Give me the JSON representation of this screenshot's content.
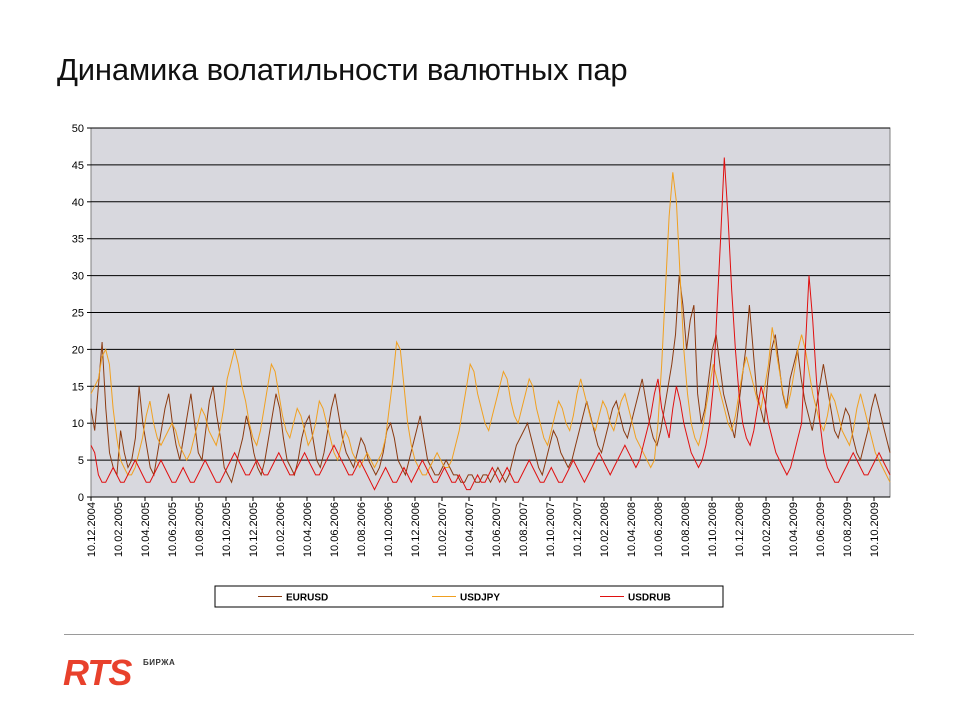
{
  "slide": {
    "title": "Динамика волатильности валютных пар"
  },
  "logo": {
    "text": "RTS",
    "subtitle": "БИРЖА",
    "color": "#e8412c"
  },
  "chart_data": {
    "type": "line",
    "title": "",
    "xlabel": "",
    "ylabel": "",
    "ylim": [
      0,
      50
    ],
    "yticks": [
      0,
      5,
      10,
      15,
      20,
      25,
      30,
      35,
      40,
      45,
      50
    ],
    "grid": true,
    "legend_position": "bottom",
    "plot_background": "#d8d8de",
    "x_tick_labels": [
      "10.12.2004",
      "10.02.2005",
      "10.04.2005",
      "10.06.2005",
      "10.08.2005",
      "10.10.2005",
      "10.12.2005",
      "10.02.2006",
      "10.04.2006",
      "10.06.2006",
      "10.08.2006",
      "10.10.2006",
      "10.12.2006",
      "10.02.2007",
      "10.04.2007",
      "10.06.2007",
      "10.08.2007",
      "10.10.2007",
      "10.12.2007",
      "10.02.2008",
      "10.04.2008",
      "10.06.2008",
      "10.08.2008",
      "10.10.2008",
      "10.12.2008",
      "10.02.2009",
      "10.04.2009",
      "10.06.2009",
      "10.08.2009",
      "10.10.2009"
    ],
    "series": [
      {
        "name": "EURUSD",
        "color": "#8b3a10",
        "values": [
          12,
          9,
          15,
          21,
          12,
          6,
          4,
          3,
          9,
          6,
          4,
          5,
          8,
          15,
          10,
          7,
          4,
          3,
          6,
          9,
          12,
          14,
          10,
          7,
          5,
          8,
          11,
          14,
          10,
          6,
          5,
          9,
          13,
          15,
          11,
          8,
          4,
          3,
          2,
          4,
          6,
          8,
          11,
          9,
          6,
          4,
          3,
          5,
          8,
          11,
          14,
          12,
          8,
          5,
          4,
          3,
          5,
          8,
          10,
          11,
          8,
          5,
          4,
          6,
          9,
          12,
          14,
          11,
          8,
          6,
          5,
          4,
          6,
          8,
          7,
          5,
          4,
          3,
          4,
          6,
          9,
          10,
          8,
          5,
          4,
          3,
          5,
          7,
          9,
          11,
          8,
          5,
          4,
          3,
          3,
          4,
          5,
          4,
          3,
          3,
          2,
          2,
          3,
          3,
          2,
          2,
          3,
          3,
          2,
          3,
          4,
          3,
          2,
          3,
          5,
          7,
          8,
          9,
          10,
          8,
          6,
          4,
          3,
          5,
          7,
          9,
          8,
          6,
          5,
          4,
          5,
          7,
          9,
          11,
          13,
          11,
          9,
          7,
          6,
          8,
          10,
          12,
          13,
          11,
          9,
          8,
          10,
          12,
          14,
          16,
          13,
          10,
          8,
          7,
          9,
          12,
          15,
          18,
          22,
          30,
          26,
          20,
          24,
          26,
          14,
          10,
          12,
          16,
          20,
          22,
          18,
          14,
          12,
          10,
          8,
          12,
          16,
          20,
          26,
          20,
          14,
          12,
          10,
          16,
          20,
          22,
          18,
          14,
          12,
          16,
          18,
          20,
          16,
          13,
          11,
          9,
          12,
          15,
          18,
          15,
          12,
          9,
          8,
          10,
          12,
          11,
          8,
          6,
          5,
          7,
          9,
          12,
          14,
          12,
          10,
          8,
          6
        ]
      },
      {
        "name": "USDJPY",
        "color": "#f0a020",
        "values": [
          14,
          15,
          16,
          19,
          20,
          18,
          12,
          8,
          5,
          4,
          3,
          3,
          4,
          6,
          8,
          11,
          13,
          10,
          8,
          7,
          8,
          9,
          10,
          9,
          7,
          6,
          5,
          6,
          8,
          10,
          12,
          11,
          9,
          8,
          7,
          9,
          12,
          16,
          18,
          20,
          18,
          15,
          13,
          10,
          8,
          7,
          9,
          12,
          15,
          18,
          17,
          14,
          11,
          9,
          8,
          10,
          12,
          11,
          9,
          7,
          8,
          10,
          13,
          12,
          10,
          8,
          6,
          5,
          7,
          9,
          8,
          6,
          5,
          4,
          5,
          6,
          5,
          4,
          5,
          6,
          8,
          12,
          16,
          21,
          20,
          15,
          10,
          7,
          5,
          4,
          3,
          3,
          4,
          5,
          6,
          5,
          4,
          4,
          5,
          7,
          9,
          12,
          15,
          18,
          17,
          14,
          12,
          10,
          9,
          11,
          13,
          15,
          17,
          16,
          13,
          11,
          10,
          12,
          14,
          16,
          15,
          12,
          10,
          8,
          7,
          9,
          11,
          13,
          12,
          10,
          9,
          11,
          14,
          16,
          14,
          12,
          10,
          9,
          11,
          13,
          12,
          10,
          9,
          11,
          13,
          14,
          12,
          10,
          8,
          7,
          6,
          5,
          4,
          5,
          10,
          18,
          28,
          38,
          44,
          40,
          30,
          20,
          14,
          10,
          8,
          7,
          9,
          12,
          15,
          18,
          16,
          14,
          12,
          10,
          9,
          11,
          14,
          17,
          19,
          17,
          15,
          13,
          12,
          15,
          18,
          23,
          20,
          17,
          14,
          12,
          14,
          17,
          20,
          22,
          20,
          17,
          14,
          12,
          10,
          9,
          11,
          14,
          13,
          11,
          9,
          8,
          7,
          9,
          12,
          14,
          12,
          10,
          8,
          6,
          5,
          4,
          3,
          2
        ]
      },
      {
        "name": "USDRUB",
        "color": "#e01010",
        "values": [
          7,
          6,
          3,
          2,
          2,
          3,
          4,
          3,
          2,
          2,
          3,
          4,
          5,
          4,
          3,
          2,
          2,
          3,
          4,
          5,
          4,
          3,
          2,
          2,
          3,
          4,
          3,
          2,
          2,
          3,
          4,
          5,
          4,
          3,
          2,
          2,
          3,
          4,
          5,
          6,
          5,
          4,
          3,
          3,
          4,
          5,
          4,
          3,
          3,
          4,
          5,
          6,
          5,
          4,
          3,
          3,
          4,
          5,
          6,
          5,
          4,
          3,
          3,
          4,
          5,
          6,
          7,
          6,
          5,
          4,
          3,
          3,
          4,
          5,
          4,
          3,
          2,
          1,
          2,
          3,
          4,
          3,
          2,
          2,
          3,
          4,
          3,
          2,
          3,
          4,
          5,
          4,
          3,
          2,
          2,
          3,
          4,
          3,
          2,
          2,
          3,
          2,
          1,
          1,
          2,
          3,
          2,
          2,
          3,
          4,
          3,
          2,
          3,
          4,
          3,
          2,
          2,
          3,
          4,
          5,
          4,
          3,
          2,
          2,
          3,
          4,
          3,
          2,
          2,
          3,
          4,
          5,
          4,
          3,
          2,
          3,
          4,
          5,
          6,
          5,
          4,
          3,
          4,
          5,
          6,
          7,
          6,
          5,
          4,
          5,
          7,
          9,
          11,
          14,
          16,
          12,
          10,
          8,
          12,
          15,
          13,
          10,
          8,
          6,
          5,
          4,
          5,
          7,
          10,
          15,
          25,
          35,
          46,
          38,
          28,
          20,
          14,
          10,
          8,
          7,
          9,
          12,
          15,
          13,
          10,
          8,
          6,
          5,
          4,
          3,
          4,
          6,
          8,
          10,
          20,
          30,
          24,
          16,
          10,
          6,
          4,
          3,
          2,
          2,
          3,
          4,
          5,
          6,
          5,
          4,
          3,
          3,
          4,
          5,
          6,
          5,
          4,
          3
        ]
      }
    ]
  }
}
